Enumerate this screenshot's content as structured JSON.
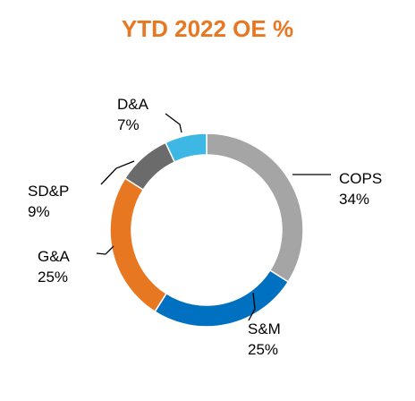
{
  "chart_data": {
    "type": "pie",
    "variant": "donut",
    "title": "YTD 2022 OE %",
    "title_color": "#E87722",
    "start": "top, clockwise",
    "slices": [
      {
        "label": "COPS",
        "value": 34,
        "value_label": "34%",
        "color": "#A5A5A5"
      },
      {
        "label": "S&M",
        "value": 25,
        "value_label": "25%",
        "color": "#0070C0"
      },
      {
        "label": "G&A",
        "value": 25,
        "value_label": "25%",
        "color": "#E87722"
      },
      {
        "label": "SD&P",
        "value": 9,
        "value_label": "9%",
        "color": "#6B6B6B"
      },
      {
        "label": "D&A",
        "value": 7,
        "value_label": "7%",
        "color": "#3DB7E4"
      }
    ]
  }
}
